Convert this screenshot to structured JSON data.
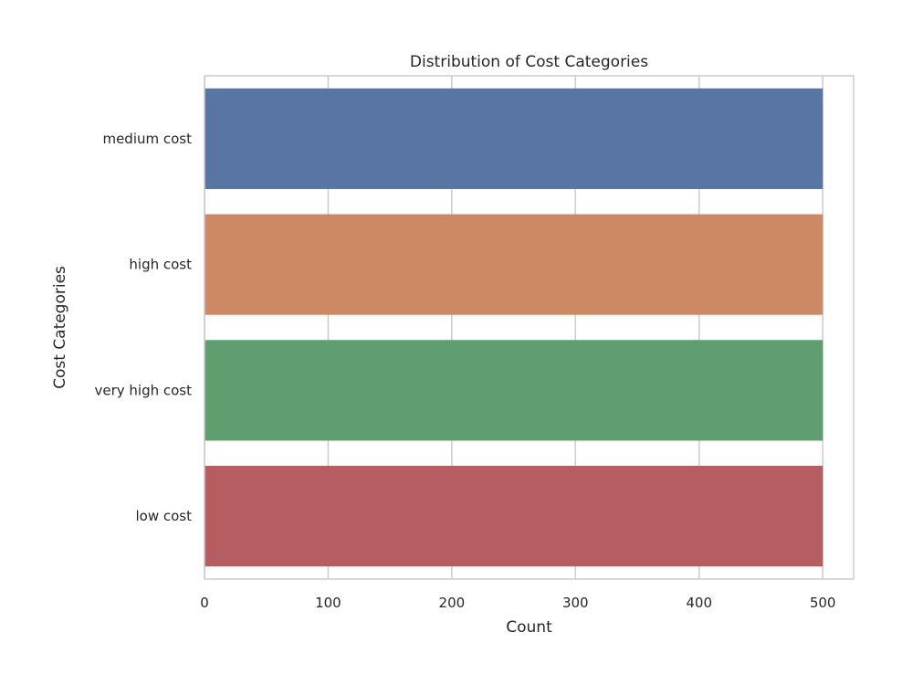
{
  "chart_data": {
    "type": "bar",
    "orientation": "horizontal",
    "title": "Distribution of Cost Categories",
    "xlabel": "Count",
    "ylabel": "Cost Categories",
    "categories": [
      "medium cost",
      "high cost",
      "very high cost",
      "low cost"
    ],
    "values": [
      500,
      500,
      500,
      500
    ],
    "xlim": [
      0,
      525
    ],
    "xticks": [
      "0",
      "100",
      "200",
      "300",
      "400",
      "500"
    ],
    "grid": true,
    "colors": [
      "#5875a4",
      "#cc8963",
      "#5f9e6e",
      "#b55d60"
    ],
    "grid_color": "#cccccc",
    "frame_color": "#cccccc"
  }
}
